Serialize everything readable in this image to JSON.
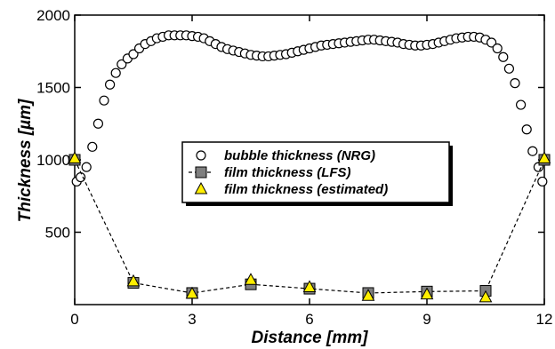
{
  "chart_data": {
    "type": "scatter",
    "title": "",
    "xlabel": "Distance [mm]",
    "ylabel": "Thickness [µm]",
    "xlim": [
      0,
      12
    ],
    "ylim": [
      0,
      2000
    ],
    "xticks": [
      0,
      3,
      6,
      9,
      12
    ],
    "yticks": [
      500,
      1000,
      1500,
      2000
    ],
    "grid": false,
    "legend_position": "center",
    "series": [
      {
        "name": "bubble thickness (NRG)",
        "marker": "open-circle",
        "line": "none",
        "color": "#000000",
        "x": [
          0.05,
          0.15,
          0.3,
          0.45,
          0.6,
          0.75,
          0.9,
          1.05,
          1.2,
          1.35,
          1.5,
          1.65,
          1.8,
          1.95,
          2.1,
          2.25,
          2.4,
          2.55,
          2.7,
          2.85,
          3.0,
          3.15,
          3.3,
          3.45,
          3.6,
          3.75,
          3.9,
          4.05,
          4.2,
          4.35,
          4.5,
          4.65,
          4.8,
          4.95,
          5.1,
          5.25,
          5.4,
          5.55,
          5.7,
          5.85,
          6.0,
          6.15,
          6.3,
          6.45,
          6.6,
          6.75,
          6.9,
          7.05,
          7.2,
          7.35,
          7.5,
          7.65,
          7.8,
          7.95,
          8.1,
          8.25,
          8.4,
          8.55,
          8.7,
          8.85,
          9.0,
          9.15,
          9.3,
          9.45,
          9.6,
          9.75,
          9.9,
          10.05,
          10.2,
          10.35,
          10.5,
          10.65,
          10.8,
          10.95,
          11.1,
          11.25,
          11.4,
          11.55,
          11.7,
          11.85,
          11.95
        ],
        "y": [
          850,
          880,
          950,
          1090,
          1250,
          1410,
          1520,
          1600,
          1660,
          1700,
          1730,
          1770,
          1800,
          1820,
          1840,
          1850,
          1860,
          1860,
          1860,
          1860,
          1855,
          1850,
          1840,
          1820,
          1800,
          1780,
          1765,
          1755,
          1745,
          1735,
          1725,
          1720,
          1715,
          1715,
          1720,
          1725,
          1730,
          1740,
          1750,
          1760,
          1770,
          1780,
          1790,
          1795,
          1800,
          1805,
          1810,
          1815,
          1820,
          1825,
          1830,
          1830,
          1825,
          1820,
          1815,
          1810,
          1800,
          1795,
          1790,
          1790,
          1795,
          1800,
          1810,
          1820,
          1830,
          1840,
          1845,
          1850,
          1850,
          1845,
          1830,
          1810,
          1770,
          1710,
          1630,
          1530,
          1380,
          1210,
          1060,
          950,
          850
        ]
      },
      {
        "name": "film thickness (LFS)",
        "marker": "square",
        "line": "dashed",
        "color": "#7f7f7f",
        "x": [
          0.0,
          1.5,
          3.0,
          4.5,
          6.0,
          7.5,
          9.0,
          10.5,
          12.0
        ],
        "y": [
          1000,
          150,
          80,
          140,
          110,
          80,
          90,
          95,
          1000
        ]
      },
      {
        "name": "film thickness (estimated)",
        "marker": "triangle",
        "line": "none",
        "color": "#ffee00",
        "x": [
          0.0,
          1.5,
          3.0,
          4.5,
          6.0,
          7.5,
          9.0,
          10.5,
          12.0
        ],
        "y": [
          1010,
          160,
          75,
          170,
          120,
          60,
          70,
          50,
          1010
        ]
      }
    ]
  }
}
